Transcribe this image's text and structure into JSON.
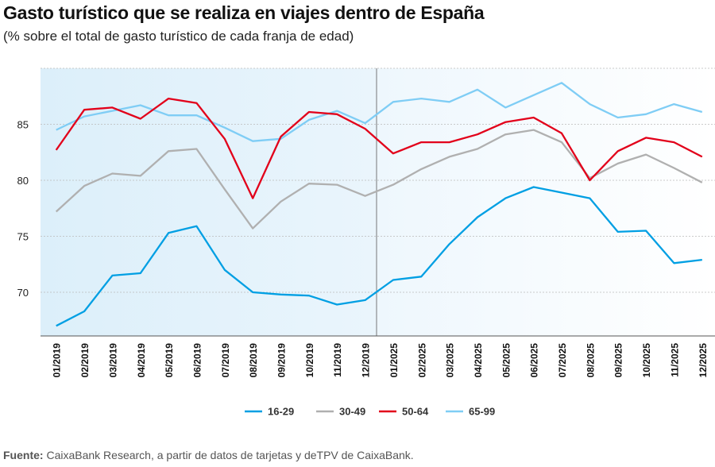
{
  "title": "Gasto turístico que se realiza en viajes dentro de España",
  "subtitle": "(% sobre el total de gasto turístico de cada franja de edad)",
  "source_label": "Fuente:",
  "source_text": " CaixaBank Research, a partir de datos de tarjetas y deTPV de CaixaBank.",
  "chart_data": {
    "type": "line",
    "categories": [
      "01/2019",
      "02/2019",
      "03/2019",
      "04/2019",
      "05/2019",
      "06/2019",
      "07/2019",
      "08/2019",
      "09/2019",
      "10/2019",
      "11/2019",
      "12/2019",
      "01/2025",
      "02/2025",
      "03/2025",
      "04/2025",
      "05/2025",
      "06/2025",
      "07/2025",
      "08/2025",
      "09/2025",
      "10/2025",
      "11/2025",
      "12/2025"
    ],
    "yticks": [
      70,
      75,
      80,
      85
    ],
    "ylim": [
      66.1,
      90
    ],
    "grid": true,
    "legend": "bottom",
    "series": [
      {
        "name": "16-29",
        "color": "#009fe3",
        "values": [
          67.0,
          68.3,
          71.5,
          71.7,
          75.3,
          75.9,
          72.0,
          70.0,
          69.8,
          69.7,
          68.9,
          69.3,
          71.1,
          71.4,
          74.3,
          76.7,
          78.4,
          79.4,
          78.9,
          78.4,
          75.4,
          75.5,
          72.6,
          72.9
        ]
      },
      {
        "name": "30-49",
        "color": "#b0b0b0",
        "values": [
          77.2,
          79.5,
          80.6,
          80.4,
          82.6,
          82.8,
          79.2,
          75.7,
          78.1,
          79.7,
          79.6,
          78.6,
          79.6,
          81.0,
          82.1,
          82.8,
          84.1,
          84.5,
          83.4,
          80.2,
          81.5,
          82.3,
          81.1,
          79.8
        ]
      },
      {
        "name": "50-64",
        "color": "#e2001a",
        "values": [
          82.7,
          86.3,
          86.5,
          85.5,
          87.3,
          86.9,
          83.7,
          78.4,
          83.9,
          86.1,
          85.9,
          84.6,
          82.4,
          83.4,
          83.4,
          84.1,
          85.2,
          85.6,
          84.2,
          80.0,
          82.6,
          83.8,
          83.4,
          82.1
        ]
      },
      {
        "name": "65-99",
        "color": "#7fcdf5",
        "values": [
          84.5,
          85.7,
          86.2,
          86.7,
          85.8,
          85.8,
          84.7,
          83.5,
          83.7,
          85.4,
          86.2,
          85.1,
          87.0,
          87.3,
          87.0,
          88.1,
          86.5,
          87.6,
          88.7,
          86.8,
          85.6,
          85.9,
          86.8,
          86.1
        ]
      }
    ]
  }
}
